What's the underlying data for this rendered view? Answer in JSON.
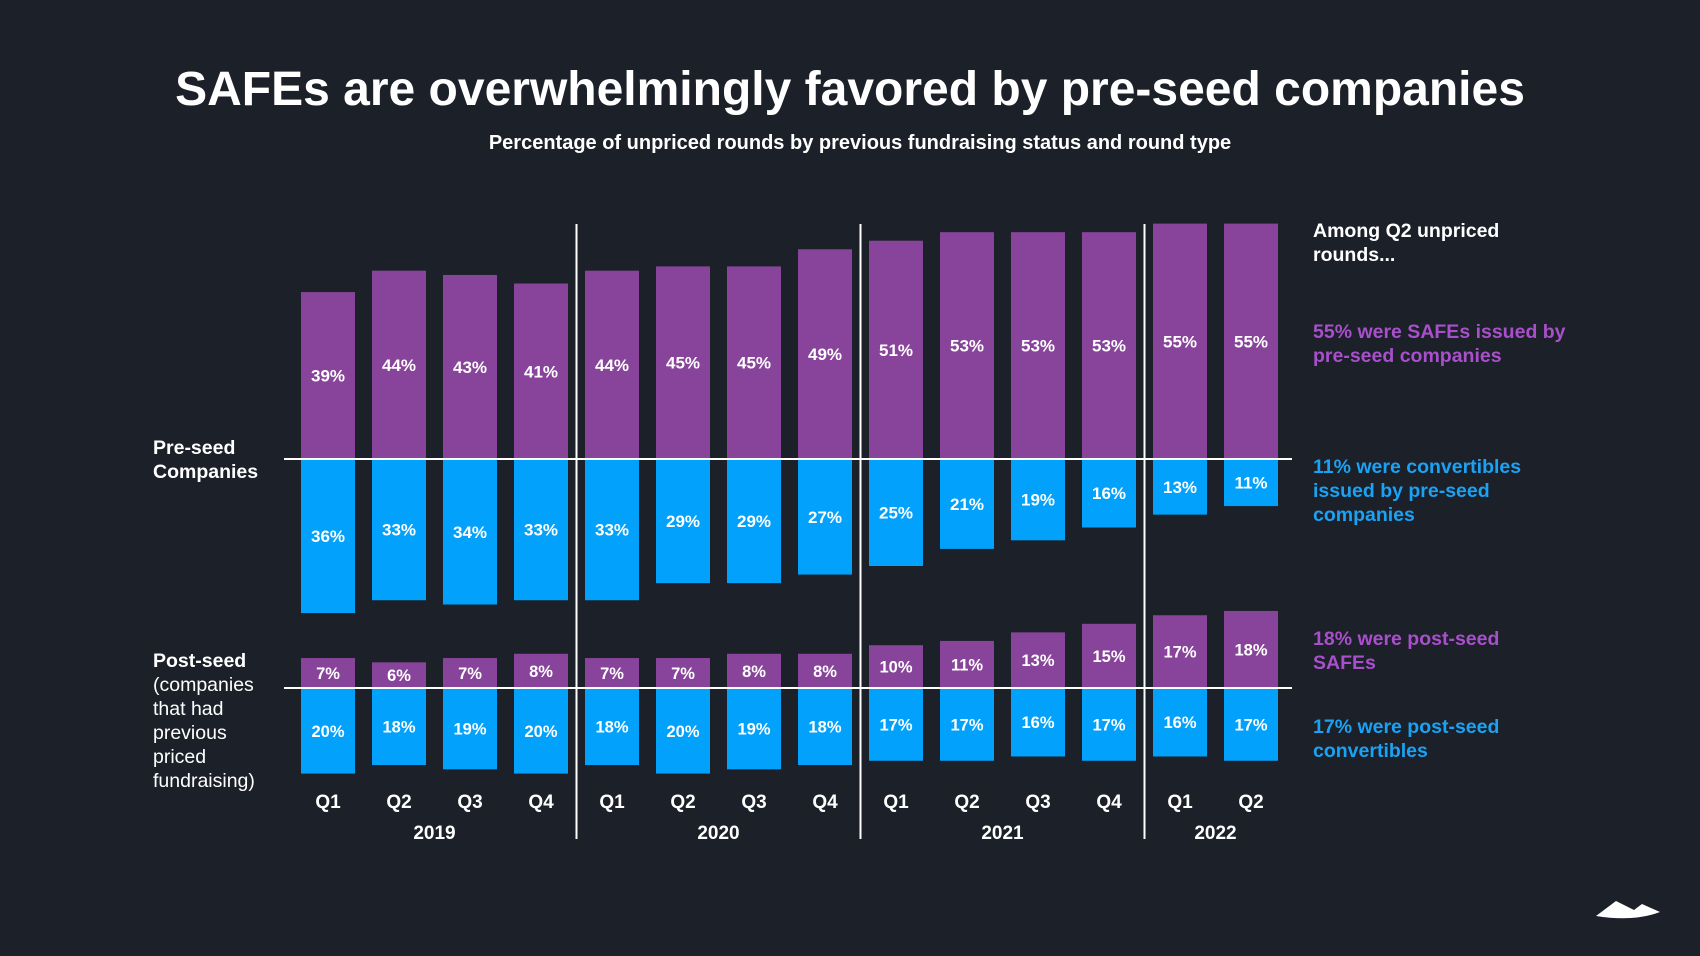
{
  "title": "SAFEs are overwhelmingly favored by pre-seed companies",
  "subtitle": "Percentage of unpriced rounds by previous fundraising status and round type",
  "colors": {
    "background": "#1b2029",
    "safe": "#88449a",
    "convertible": "#02a2fc",
    "safe_text": "#a94fcc",
    "convertible_text": "#1ba2f5"
  },
  "side_labels": {
    "pre_seed": [
      "Pre-seed",
      "Companies"
    ],
    "post_seed_title": "Post-seed",
    "post_seed_desc": [
      "(companies",
      "that had",
      "previous",
      "priced",
      "fundraising)"
    ]
  },
  "annotations": {
    "header": "Among Q2 unpriced rounds...",
    "pre_seed_safe": "55% were SAFEs issued by pre-seed companies",
    "pre_seed_convertible": "11% were convertibles issued by pre-seed companies",
    "post_seed_safe": "18% were post-seed SAFEs",
    "post_seed_convertible": "17% were post-seed convertibles"
  },
  "logo": "mountain-logo",
  "chart_data": {
    "type": "bar",
    "categories": [
      "Q1",
      "Q2",
      "Q3",
      "Q4",
      "Q1",
      "Q2",
      "Q3",
      "Q4",
      "Q1",
      "Q2",
      "Q3",
      "Q4",
      "Q1",
      "Q2"
    ],
    "years": [
      {
        "label": "2019",
        "quarters": 4
      },
      {
        "label": "2020",
        "quarters": 4
      },
      {
        "label": "2021",
        "quarters": 4
      },
      {
        "label": "2022",
        "quarters": 2
      }
    ],
    "groups": [
      {
        "name": "Pre-seed Companies",
        "series": [
          {
            "type": "safe",
            "values": [
              39,
              44,
              43,
              41,
              44,
              45,
              45,
              49,
              51,
              53,
              53,
              53,
              55,
              55
            ]
          },
          {
            "type": "convertible",
            "values": [
              36,
              33,
              34,
              33,
              33,
              29,
              29,
              27,
              25,
              21,
              19,
              16,
              13,
              11
            ]
          }
        ]
      },
      {
        "name": "Post-seed",
        "series": [
          {
            "type": "safe",
            "values": [
              7,
              6,
              7,
              8,
              7,
              7,
              8,
              8,
              10,
              11,
              13,
              15,
              17,
              18
            ]
          },
          {
            "type": "convertible",
            "values": [
              20,
              18,
              19,
              20,
              18,
              20,
              19,
              18,
              17,
              17,
              16,
              17,
              16,
              17
            ]
          }
        ]
      }
    ],
    "value_format": "percent",
    "grid": false
  }
}
